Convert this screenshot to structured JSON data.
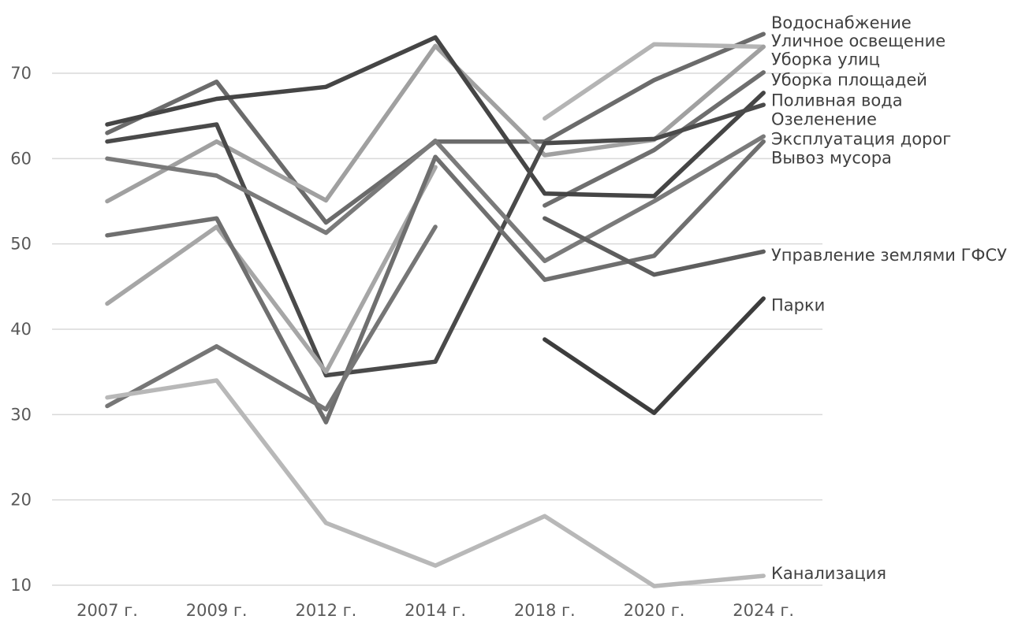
{
  "chart_data": {
    "type": "line",
    "categories": [
      "2007 г.",
      "2009 г.",
      "2012 г.",
      "2014 г.",
      "2018 г.",
      "2020 г.",
      "2024 г."
    ],
    "ylim": [
      10,
      75
    ],
    "yticks": [
      10,
      20,
      30,
      40,
      50,
      60,
      70
    ],
    "grid": true,
    "legend": "right, labels at line ends",
    "series": [
      {
        "name": "Водоснабжение",
        "color": "#6b6b6b",
        "values": [
          63,
          69,
          52.5,
          62,
          62,
          69.2,
          74.6
        ]
      },
      {
        "name": "Уличное освещение",
        "color": "#b4b4b4",
        "values": [
          null,
          null,
          null,
          null,
          64.7,
          73.4,
          73.1
        ]
      },
      {
        "name": "Уборка улиц",
        "color": "#a0a0a0",
        "values": [
          55,
          62,
          55.1,
          73.2,
          60.4,
          62.2,
          73.1
        ]
      },
      {
        "name": "Уборка площадей",
        "color": "#6e6e6e",
        "values": [
          null,
          null,
          null,
          null,
          54.5,
          61,
          70.1
        ]
      },
      {
        "name": "Поливная вода",
        "color": "#454545",
        "values": [
          64,
          67,
          68.4,
          74.2,
          55.9,
          55.6,
          67.7
        ]
      },
      {
        "name": "Озеленение",
        "color": "#4a4a4a",
        "values": [
          62,
          64,
          34.6,
          36.2,
          61.8,
          62.3,
          66.3
        ]
      },
      {
        "name": "Эксплуатация дорог",
        "color": "#7a7a7a",
        "values": [
          60,
          58,
          51.3,
          62.1,
          48,
          55,
          62.6
        ]
      },
      {
        "name": "Вывоз мусора",
        "color": "#a6a6a6",
        "values": [
          43,
          52,
          35,
          59,
          null,
          null,
          61.6
        ]
      },
      {
        "name": "Управление землями ГФСУ",
        "color": "#6f6f6f",
        "values": [
          51,
          53,
          29.1,
          60.2,
          45.8,
          48.6,
          62
        ]
      },
      {
        "name": "Управление землями ГФСУ (2)",
        "color": "#5e5e5e",
        "values": [
          null,
          null,
          null,
          null,
          53,
          46.4,
          49.1
        ]
      },
      {
        "name": "Парки",
        "color": "#3d3d3d",
        "values": [
          null,
          null,
          null,
          null,
          38.8,
          30.2,
          43.6
        ]
      },
      {
        "name": "Парки (2)",
        "color": "#767676",
        "values": [
          31,
          38,
          30.6,
          52,
          null,
          null,
          null
        ]
      },
      {
        "name": "Канализация",
        "color": "#b8b8b8",
        "values": [
          32,
          34,
          17.3,
          12.3,
          18.1,
          9.9,
          11.1
        ]
      }
    ],
    "labels": [
      {
        "text": "Водоснабжение",
        "value": 75.9
      },
      {
        "text": "Уличное освещение",
        "value": 73.8
      },
      {
        "text": "Уборка улиц",
        "value": 71.6
      },
      {
        "text": "Уборка площадей",
        "value": 69.2
      },
      {
        "text": "Поливная вода",
        "value": 66.8
      },
      {
        "text": "Озеленение",
        "value": 64.6
      },
      {
        "text": "Эксплуатация дорог",
        "value": 62.3
      },
      {
        "text": "Вывоз мусора",
        "value": 60.1
      },
      {
        "text": "Управление землями ГФСУ",
        "value": 48.7
      },
      {
        "text": "Парки",
        "value": 42.8
      },
      {
        "text": "Канализация",
        "value": 11.4
      }
    ]
  }
}
